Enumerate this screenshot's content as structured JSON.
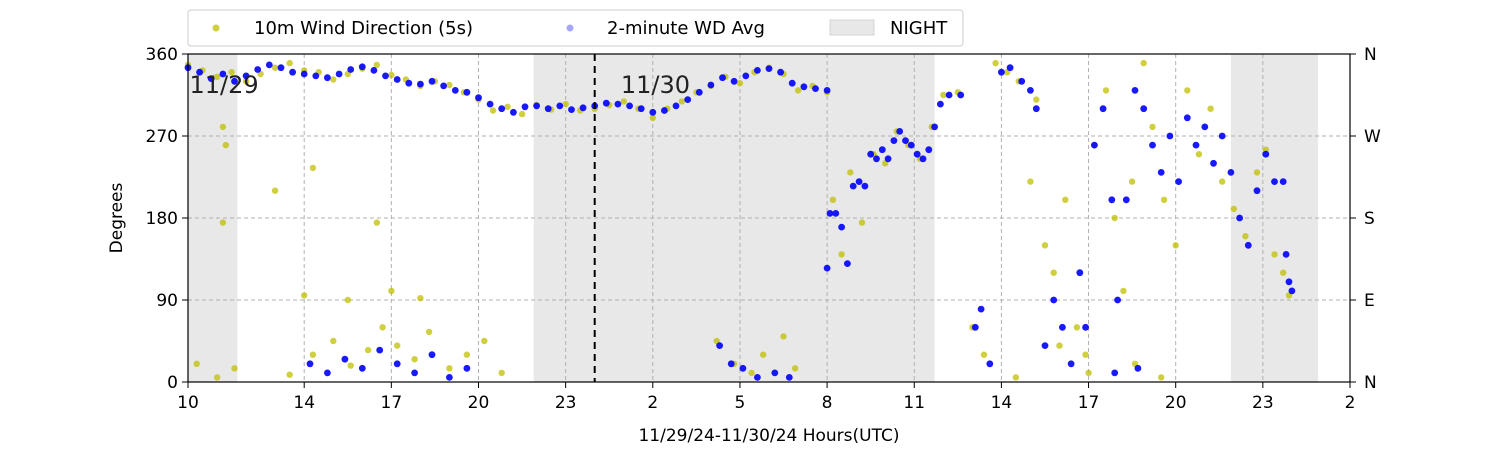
{
  "chart_data": {
    "type": "scatter",
    "xlabel": "11/29/24-11/30/24  Hours(UTC)",
    "ylabel": "Degrees",
    "x_range_hours": [
      10,
      50
    ],
    "x_ticks": [
      {
        "hour": 10,
        "label": "10"
      },
      {
        "hour": 14,
        "label": "14"
      },
      {
        "hour": 17,
        "label": "17"
      },
      {
        "hour": 20,
        "label": "20"
      },
      {
        "hour": 23,
        "label": "23"
      },
      {
        "hour": 26,
        "label": "2"
      },
      {
        "hour": 29,
        "label": "5"
      },
      {
        "hour": 32,
        "label": "8"
      },
      {
        "hour": 35,
        "label": "11"
      },
      {
        "hour": 38,
        "label": "14"
      },
      {
        "hour": 41,
        "label": "17"
      },
      {
        "hour": 44,
        "label": "20"
      },
      {
        "hour": 47,
        "label": "23"
      },
      {
        "hour": 50,
        "label": "2"
      }
    ],
    "ylim": [
      0,
      360
    ],
    "y_ticks": [
      {
        "value": 0,
        "label": "0"
      },
      {
        "value": 90,
        "label": "90"
      },
      {
        "value": 180,
        "label": "180"
      },
      {
        "value": 270,
        "label": "270"
      },
      {
        "value": 360,
        "label": "360"
      }
    ],
    "right_ticks": [
      {
        "value": 0,
        "label": "N"
      },
      {
        "value": 90,
        "label": "E"
      },
      {
        "value": 180,
        "label": "S"
      },
      {
        "value": 270,
        "label": "W"
      },
      {
        "value": 360,
        "label": "N"
      }
    ],
    "grid": true,
    "legend_position": "top",
    "night_periods": [
      [
        10,
        11.7
      ],
      [
        21.9,
        35.7
      ],
      [
        45.9,
        48.9
      ]
    ],
    "day_boundary_hour": 24,
    "day_labels": [
      {
        "hour": 10.05,
        "value": 326,
        "text": "11/29"
      },
      {
        "hour": 24.9,
        "value": 326,
        "text": "11/30"
      }
    ],
    "series": [
      {
        "name": "10m Wind Direction (5s)",
        "color": "#bfbf00",
        "marker": "circle",
        "points": [
          [
            10.0,
            348
          ],
          [
            10.5,
            342
          ],
          [
            11.0,
            335
          ],
          [
            11.5,
            340
          ],
          [
            12.0,
            330
          ],
          [
            12.5,
            338
          ],
          [
            13.0,
            345
          ],
          [
            13.5,
            350
          ],
          [
            14.0,
            342
          ],
          [
            14.5,
            340
          ],
          [
            15.0,
            332
          ],
          [
            15.5,
            338
          ],
          [
            16.0,
            344
          ],
          [
            16.5,
            348
          ],
          [
            17.0,
            337
          ],
          [
            17.5,
            332
          ],
          [
            18.0,
            325
          ],
          [
            18.5,
            330
          ],
          [
            19.0,
            326
          ],
          [
            19.5,
            318
          ],
          [
            20.0,
            310
          ],
          [
            20.5,
            298
          ],
          [
            21.0,
            302
          ],
          [
            21.5,
            294
          ],
          [
            22.0,
            304
          ],
          [
            22.5,
            299
          ],
          [
            23.0,
            305
          ],
          [
            23.5,
            298
          ],
          [
            24.0,
            300
          ],
          [
            24.5,
            304
          ],
          [
            25.0,
            308
          ],
          [
            25.5,
            300
          ],
          [
            26.0,
            290
          ],
          [
            26.5,
            300
          ],
          [
            27.0,
            308
          ],
          [
            27.5,
            318
          ],
          [
            28.0,
            325
          ],
          [
            28.5,
            335
          ],
          [
            29.0,
            328
          ],
          [
            29.5,
            340
          ],
          [
            30.0,
            345
          ],
          [
            30.5,
            338
          ],
          [
            31.0,
            320
          ],
          [
            31.5,
            325
          ],
          [
            32.0,
            318
          ],
          [
            10.3,
            20
          ],
          [
            11.0,
            5
          ],
          [
            11.6,
            15
          ],
          [
            13.5,
            8
          ],
          [
            14.3,
            30
          ],
          [
            15.0,
            45
          ],
          [
            15.6,
            18
          ],
          [
            16.2,
            35
          ],
          [
            16.7,
            60
          ],
          [
            17.2,
            40
          ],
          [
            17.8,
            25
          ],
          [
            18.3,
            55
          ],
          [
            19.0,
            15
          ],
          [
            19.6,
            30
          ],
          [
            20.2,
            45
          ],
          [
            20.8,
            10
          ],
          [
            14.0,
            95
          ],
          [
            15.5,
            90
          ],
          [
            17.0,
            100
          ],
          [
            18.0,
            92
          ],
          [
            11.2,
            280
          ],
          [
            11.3,
            260
          ],
          [
            13.0,
            210
          ],
          [
            14.3,
            235
          ],
          [
            11.2,
            175
          ],
          [
            16.5,
            175
          ],
          [
            28.2,
            45
          ],
          [
            28.8,
            20
          ],
          [
            29.4,
            10
          ],
          [
            29.8,
            30
          ],
          [
            30.5,
            50
          ],
          [
            30.9,
            15
          ],
          [
            32.2,
            200
          ],
          [
            32.5,
            140
          ],
          [
            32.8,
            230
          ],
          [
            33.2,
            175
          ],
          [
            33.6,
            250
          ],
          [
            34.0,
            240
          ],
          [
            34.4,
            275
          ],
          [
            34.8,
            260
          ],
          [
            35.2,
            245
          ],
          [
            35.6,
            280
          ],
          [
            36.0,
            315
          ],
          [
            36.5,
            318
          ],
          [
            37.0,
            60
          ],
          [
            37.4,
            30
          ],
          [
            37.8,
            350
          ],
          [
            38.2,
            340
          ],
          [
            38.6,
            330
          ],
          [
            39.0,
            220
          ],
          [
            39.2,
            310
          ],
          [
            39.5,
            150
          ],
          [
            39.8,
            120
          ],
          [
            40.2,
            200
          ],
          [
            40.6,
            60
          ],
          [
            40.9,
            30
          ],
          [
            41.2,
            260
          ],
          [
            41.6,
            320
          ],
          [
            41.9,
            180
          ],
          [
            42.2,
            100
          ],
          [
            42.5,
            220
          ],
          [
            42.9,
            350
          ],
          [
            43.2,
            280
          ],
          [
            43.6,
            200
          ],
          [
            44.0,
            150
          ],
          [
            44.4,
            320
          ],
          [
            44.8,
            250
          ],
          [
            45.2,
            300
          ],
          [
            45.6,
            220
          ],
          [
            46.0,
            190
          ],
          [
            46.4,
            160
          ],
          [
            46.8,
            230
          ],
          [
            47.1,
            255
          ],
          [
            47.4,
            140
          ],
          [
            47.7,
            120
          ],
          [
            47.9,
            95
          ],
          [
            38.5,
            5
          ],
          [
            40.0,
            40
          ],
          [
            41.0,
            10
          ],
          [
            42.6,
            20
          ],
          [
            43.5,
            5
          ]
        ]
      },
      {
        "name": "2-minute WD Avg",
        "color": "#0000ff",
        "marker": "circle",
        "points": [
          [
            10.0,
            345
          ],
          [
            10.4,
            340
          ],
          [
            10.8,
            333
          ],
          [
            11.2,
            338
          ],
          [
            11.6,
            330
          ],
          [
            12.0,
            336
          ],
          [
            12.4,
            343
          ],
          [
            12.8,
            348
          ],
          [
            13.2,
            345
          ],
          [
            13.6,
            340
          ],
          [
            14.0,
            338
          ],
          [
            14.4,
            336
          ],
          [
            14.8,
            334
          ],
          [
            15.2,
            338
          ],
          [
            15.6,
            343
          ],
          [
            16.0,
            346
          ],
          [
            16.4,
            342
          ],
          [
            16.8,
            336
          ],
          [
            17.2,
            332
          ],
          [
            17.6,
            328
          ],
          [
            18.0,
            327
          ],
          [
            18.4,
            330
          ],
          [
            18.8,
            325
          ],
          [
            19.2,
            320
          ],
          [
            19.6,
            318
          ],
          [
            20.0,
            312
          ],
          [
            20.4,
            305
          ],
          [
            20.8,
            300
          ],
          [
            21.2,
            296
          ],
          [
            21.6,
            302
          ],
          [
            22.0,
            303
          ],
          [
            22.4,
            300
          ],
          [
            22.8,
            303
          ],
          [
            23.2,
            299
          ],
          [
            23.6,
            301
          ],
          [
            24.0,
            303
          ],
          [
            24.4,
            306
          ],
          [
            24.8,
            305
          ],
          [
            25.2,
            303
          ],
          [
            25.6,
            300
          ],
          [
            26.0,
            296
          ],
          [
            26.4,
            298
          ],
          [
            26.8,
            303
          ],
          [
            27.2,
            310
          ],
          [
            27.6,
            318
          ],
          [
            28.0,
            326
          ],
          [
            28.4,
            334
          ],
          [
            28.8,
            330
          ],
          [
            29.2,
            336
          ],
          [
            29.6,
            342
          ],
          [
            30.0,
            344
          ],
          [
            30.4,
            340
          ],
          [
            30.8,
            328
          ],
          [
            31.2,
            324
          ],
          [
            31.6,
            322
          ],
          [
            32.0,
            320
          ],
          [
            14.2,
            20
          ],
          [
            14.8,
            10
          ],
          [
            15.4,
            25
          ],
          [
            16.0,
            15
          ],
          [
            16.6,
            35
          ],
          [
            17.2,
            20
          ],
          [
            17.8,
            10
          ],
          [
            18.4,
            30
          ],
          [
            19.0,
            5
          ],
          [
            19.6,
            15
          ],
          [
            28.3,
            40
          ],
          [
            28.7,
            20
          ],
          [
            29.1,
            15
          ],
          [
            29.6,
            5
          ],
          [
            30.2,
            10
          ],
          [
            30.7,
            5
          ],
          [
            32.0,
            125
          ],
          [
            32.1,
            185
          ],
          [
            32.3,
            185
          ],
          [
            32.5,
            170
          ],
          [
            32.7,
            130
          ],
          [
            32.9,
            215
          ],
          [
            33.1,
            220
          ],
          [
            33.3,
            215
          ],
          [
            33.5,
            250
          ],
          [
            33.7,
            245
          ],
          [
            33.9,
            255
          ],
          [
            34.1,
            245
          ],
          [
            34.3,
            265
          ],
          [
            34.5,
            275
          ],
          [
            34.7,
            265
          ],
          [
            34.9,
            260
          ],
          [
            35.1,
            250
          ],
          [
            35.3,
            245
          ],
          [
            35.5,
            255
          ],
          [
            35.7,
            280
          ],
          [
            35.9,
            305
          ],
          [
            36.2,
            315
          ],
          [
            36.6,
            315
          ],
          [
            37.1,
            60
          ],
          [
            37.3,
            80
          ],
          [
            37.6,
            20
          ],
          [
            38.0,
            340
          ],
          [
            38.3,
            345
          ],
          [
            38.7,
            330
          ],
          [
            39.0,
            320
          ],
          [
            39.2,
            300
          ],
          [
            39.5,
            40
          ],
          [
            39.8,
            90
          ],
          [
            40.1,
            60
          ],
          [
            40.4,
            20
          ],
          [
            40.7,
            120
          ],
          [
            40.9,
            60
          ],
          [
            41.2,
            260
          ],
          [
            41.5,
            300
          ],
          [
            41.8,
            200
          ],
          [
            42.0,
            90
          ],
          [
            42.3,
            200
          ],
          [
            42.6,
            320
          ],
          [
            42.9,
            300
          ],
          [
            43.2,
            260
          ],
          [
            43.5,
            230
          ],
          [
            43.8,
            270
          ],
          [
            44.1,
            220
          ],
          [
            44.4,
            290
          ],
          [
            44.7,
            260
          ],
          [
            45.0,
            280
          ],
          [
            45.3,
            240
          ],
          [
            45.6,
            270
          ],
          [
            45.9,
            230
          ],
          [
            46.2,
            180
          ],
          [
            46.5,
            150
          ],
          [
            46.8,
            210
          ],
          [
            47.1,
            250
          ],
          [
            47.4,
            220
          ],
          [
            47.7,
            220
          ],
          [
            47.8,
            140
          ],
          [
            47.9,
            110
          ],
          [
            48.0,
            100
          ],
          [
            41.9,
            10
          ],
          [
            42.7,
            15
          ]
        ]
      }
    ]
  }
}
